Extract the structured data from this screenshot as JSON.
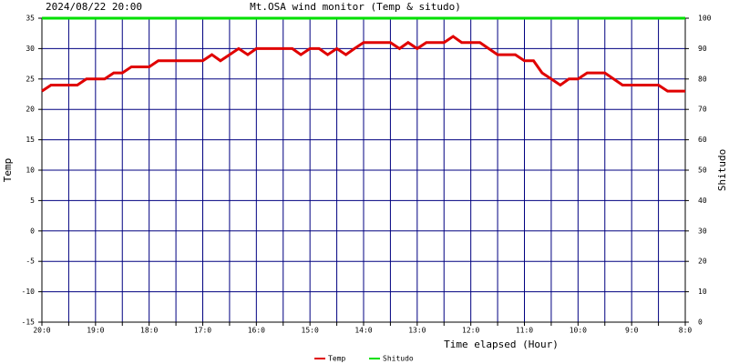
{
  "chart_data": {
    "type": "line",
    "date": "2024/08/22 20:00",
    "title": "Mt.OSA wind monitor (Temp & situdo)",
    "xlabel": "Time elapsed (Hour)",
    "ylabel": "Temp",
    "y2label": "Shitudo",
    "xlim": [
      20,
      8
    ],
    "xticks": [
      {
        "value": 20,
        "label": "20:0"
      },
      {
        "value": 19.5,
        "label": null
      },
      {
        "value": 19,
        "label": "19:0"
      },
      {
        "value": 18.5,
        "label": null
      },
      {
        "value": 18,
        "label": "18:0"
      },
      {
        "value": 17.5,
        "label": null
      },
      {
        "value": 17,
        "label": "17:0"
      },
      {
        "value": 16.5,
        "label": null
      },
      {
        "value": 16,
        "label": "16:0"
      },
      {
        "value": 15.5,
        "label": null
      },
      {
        "value": 15,
        "label": "15:0"
      },
      {
        "value": 14.5,
        "label": null
      },
      {
        "value": 14,
        "label": "14:0"
      },
      {
        "value": 13.5,
        "label": null
      },
      {
        "value": 13,
        "label": "13:0"
      },
      {
        "value": 12.5,
        "label": null
      },
      {
        "value": 12,
        "label": "12:0"
      },
      {
        "value": 11.5,
        "label": null
      },
      {
        "value": 11,
        "label": "11:0"
      },
      {
        "value": 10.5,
        "label": null
      },
      {
        "value": 10,
        "label": "10:0"
      },
      {
        "value": 9.5,
        "label": null
      },
      {
        "value": 9,
        "label": "9:0"
      },
      {
        "value": 8.5,
        "label": null
      },
      {
        "value": 8,
        "label": "8:0"
      }
    ],
    "ylim": [
      -15,
      35
    ],
    "yticks": [
      -15,
      -10,
      -5,
      0,
      5,
      10,
      15,
      20,
      25,
      30,
      35
    ],
    "y2lim": [
      0,
      100
    ],
    "y2ticks": [
      0,
      10,
      20,
      30,
      40,
      50,
      60,
      70,
      80,
      90,
      100
    ],
    "grid": true,
    "series": [
      {
        "name": "Temp",
        "color": "#e00000",
        "x": [
          20,
          19.83,
          19.34,
          19.17,
          18.83,
          18.66,
          18.5,
          18.33,
          18,
          17.83,
          17,
          16.83,
          16.67,
          16.33,
          16.16,
          16,
          15.33,
          15.17,
          15,
          14.83,
          14.67,
          14.5,
          14.33,
          14.17,
          14,
          13.5,
          13.33,
          13.17,
          13,
          12.83,
          12.5,
          12.33,
          12.17,
          11.83,
          11.5,
          11.17,
          11,
          10.83,
          10.67,
          10.5,
          10.33,
          10.17,
          10,
          9.83,
          9.5,
          9.17,
          8.5,
          8.33,
          8
        ],
        "values": [
          23,
          24,
          24,
          25,
          25,
          26,
          26,
          27,
          27,
          28,
          28,
          29,
          28,
          30,
          29,
          30,
          30,
          29,
          30,
          30,
          29,
          30,
          29,
          30,
          31,
          31,
          30,
          31,
          30,
          31,
          31,
          32,
          31,
          31,
          29,
          29,
          28,
          28,
          26,
          25,
          24,
          25,
          25,
          26,
          26,
          24,
          24,
          23,
          23
        ]
      },
      {
        "name": "Shitudo",
        "color": "#00e000",
        "axis": "y2",
        "x": [
          20,
          8
        ],
        "values": [
          100,
          100
        ]
      }
    ]
  }
}
